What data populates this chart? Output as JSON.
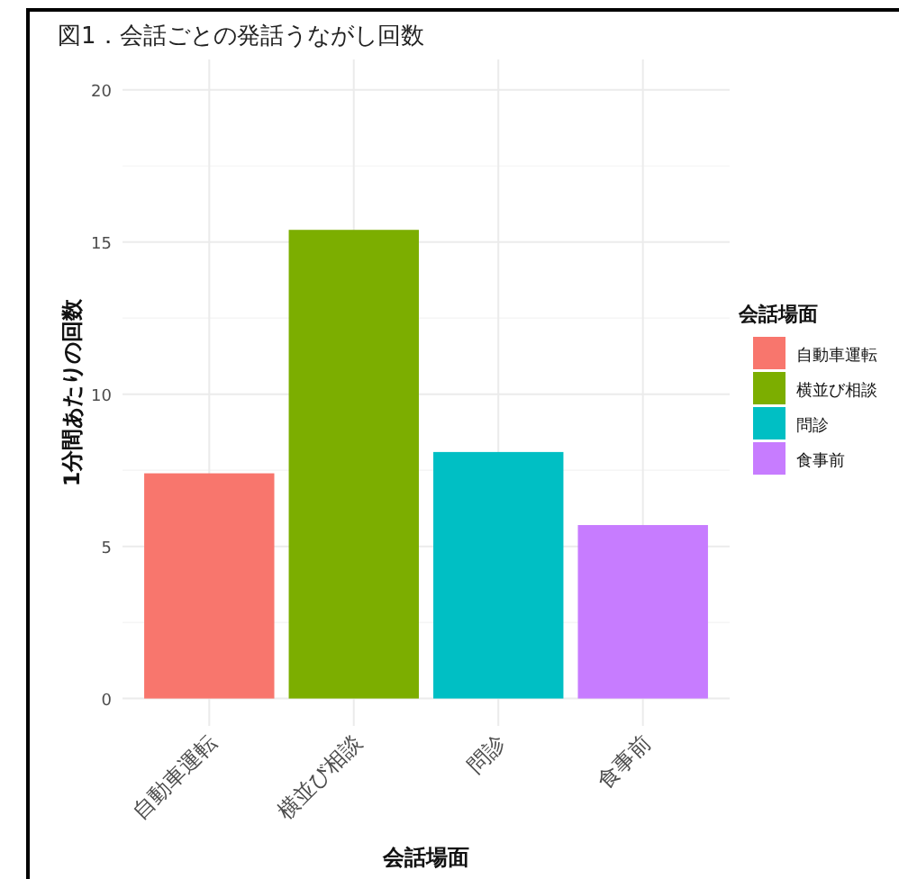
{
  "chart_data": {
    "type": "bar",
    "title": "図1．会話ごとの発話うながし回数",
    "xlabel": "会話場面",
    "ylabel": "1分間あたりの回数",
    "legend_title": "会話場面",
    "categories": [
      "自動車運転",
      "横並び相談",
      "問診",
      "食事前"
    ],
    "series": [
      {
        "name": "自動車運転",
        "color": "#f8766d",
        "values": [
          7.4,
          null,
          null,
          null
        ]
      },
      {
        "name": "横並び相談",
        "color": "#7cae00",
        "values": [
          null,
          15.4,
          null,
          null
        ]
      },
      {
        "name": "問診",
        "color": "#00bfc4",
        "values": [
          null,
          null,
          8.1,
          null
        ]
      },
      {
        "name": "食事前",
        "color": "#c77cff",
        "values": [
          null,
          null,
          null,
          5.7
        ]
      }
    ],
    "ylim": [
      -0.9,
      21
    ],
    "yticks": [
      0,
      5,
      10,
      15,
      20
    ],
    "grid": true,
    "legend": "right"
  }
}
